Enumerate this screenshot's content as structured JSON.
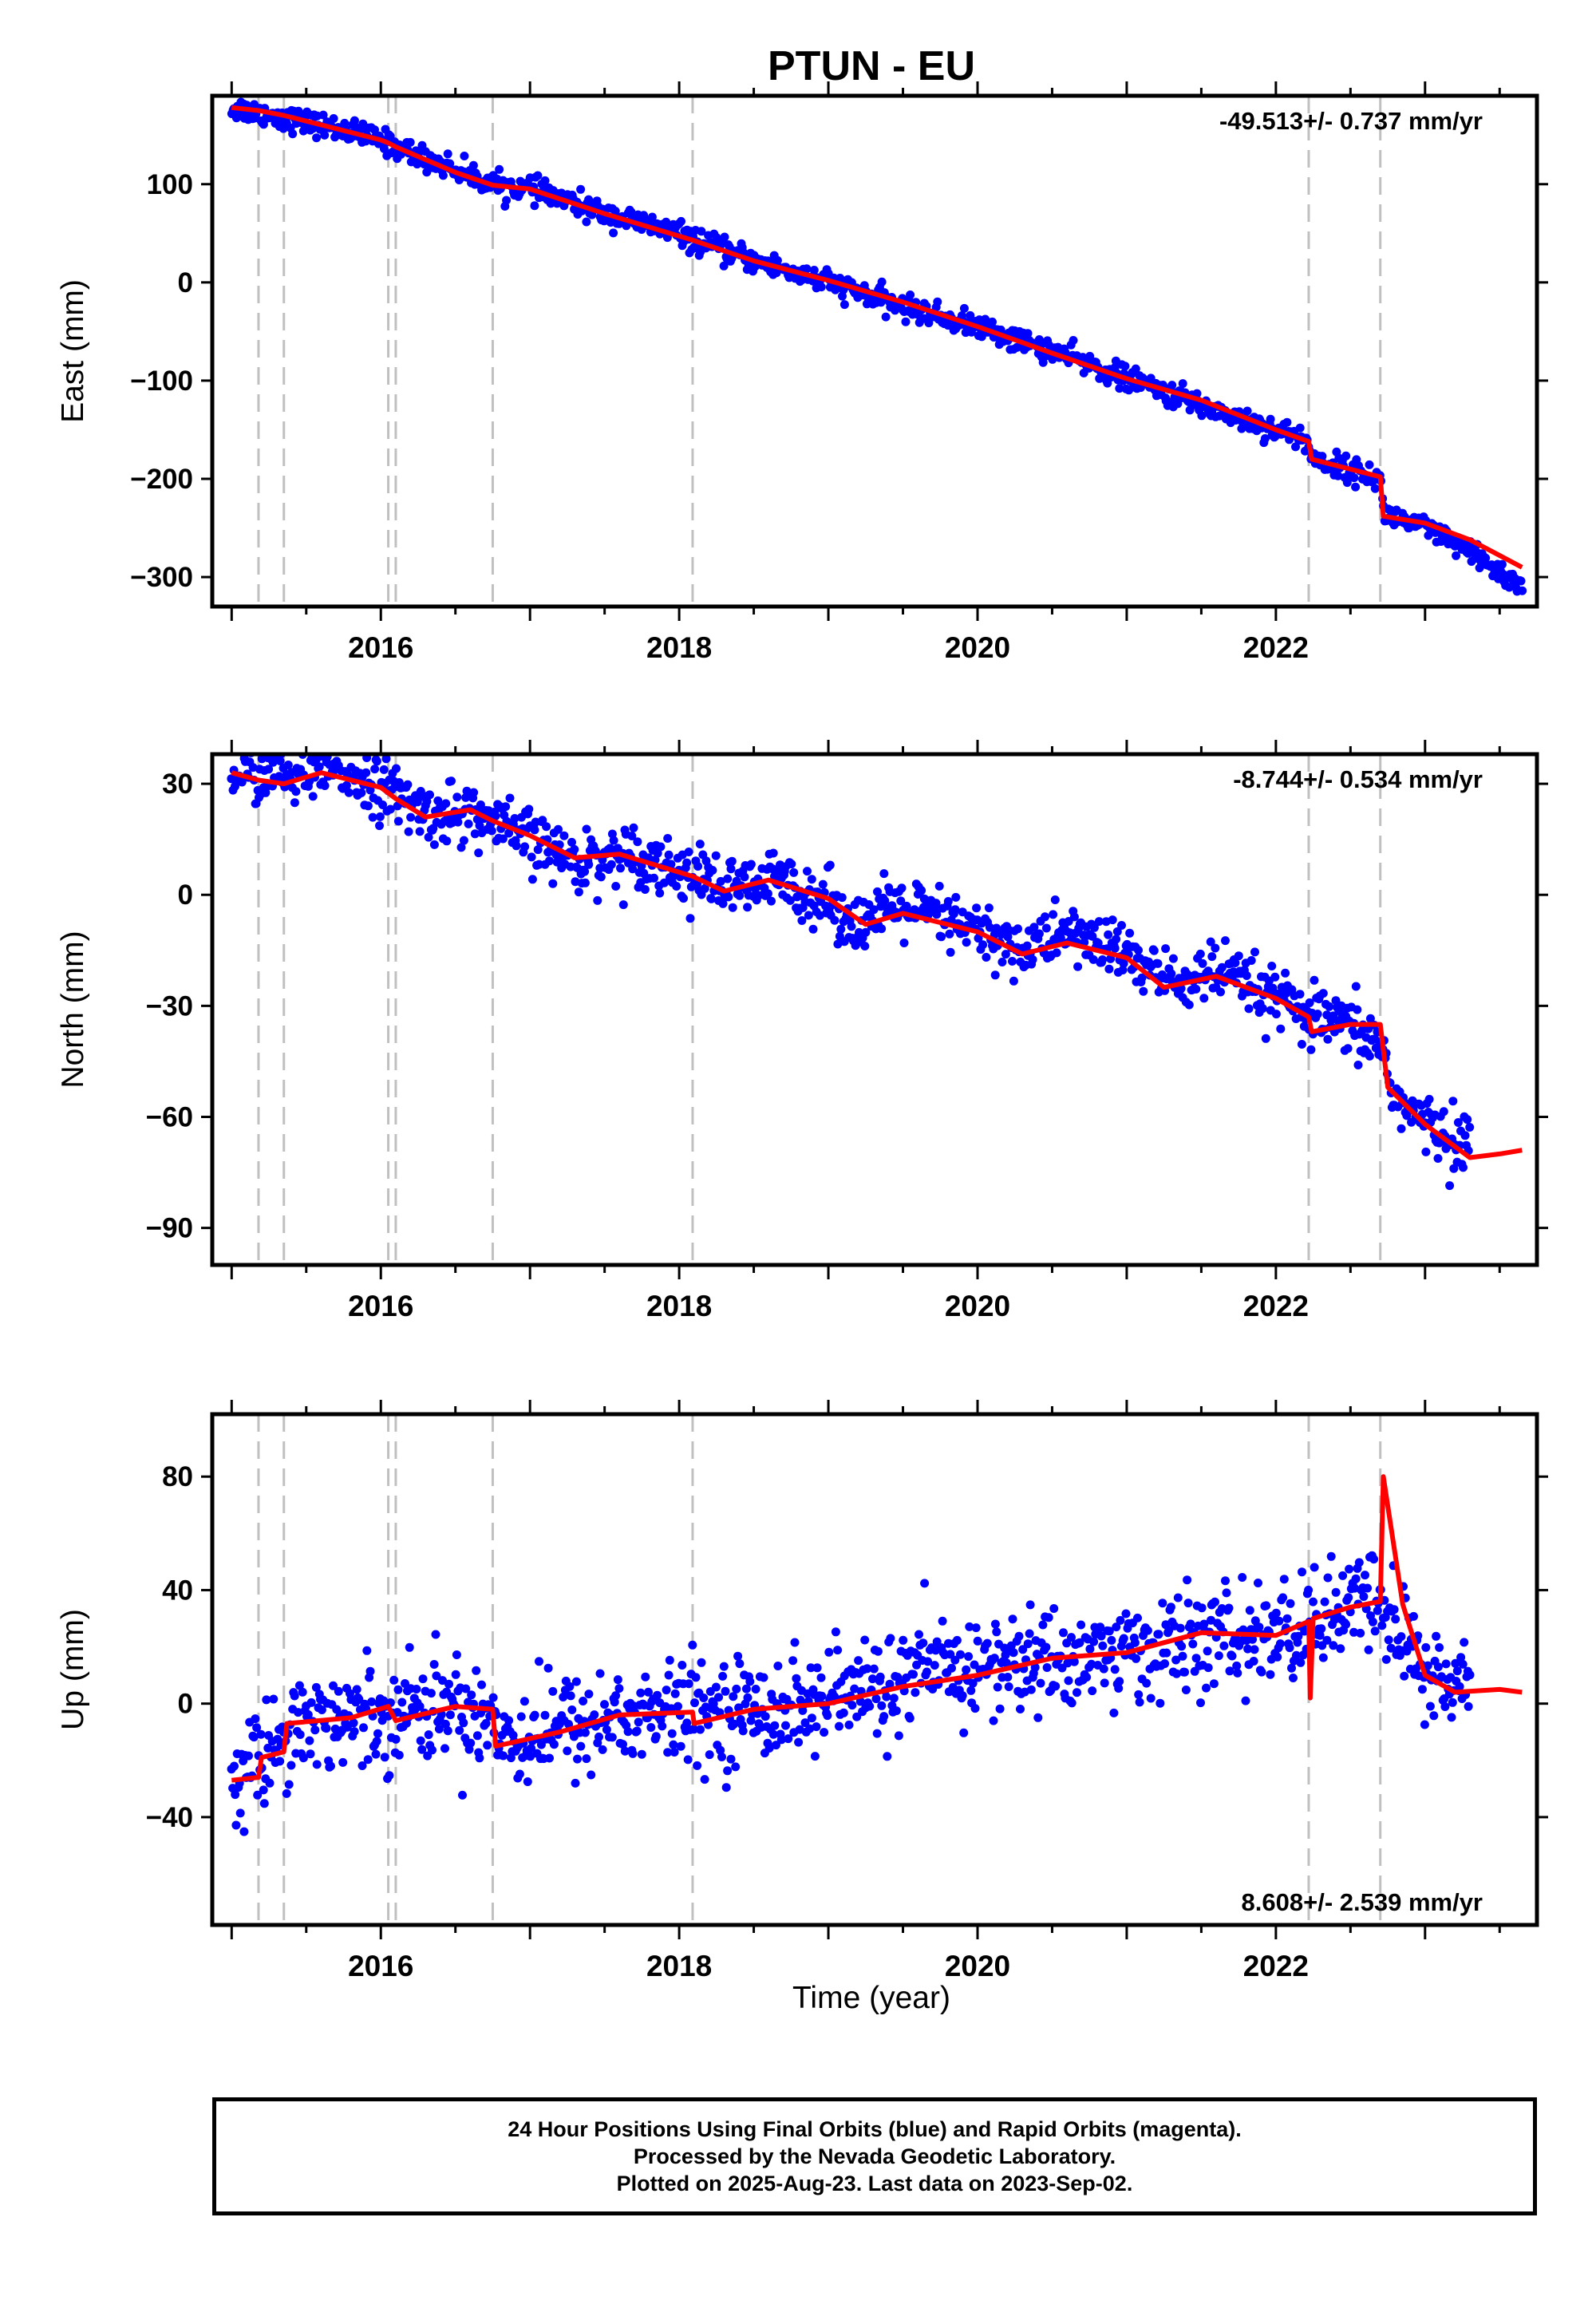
{
  "title": "PTUN - EU",
  "xlabel": "Time (year)",
  "footer": {
    "line1": "24 Hour Positions Using Final Orbits (blue) and Rapid Orbits (magenta).",
    "line2": "Processed by the Nevada Geodetic Laboratory.",
    "line3": "Plotted on 2025-Aug-23. Last data on 2023-Sep-02."
  },
  "colors": {
    "data": "#0000ff",
    "model": "#ff0000",
    "event": "#c0c0c0"
  },
  "chart_data": [
    {
      "type": "scatter",
      "panel": "east",
      "ylabel": "East (mm)",
      "rate": "-49.513+/- 0.737 mm/yr",
      "xlim": [
        2014.87,
        2023.75
      ],
      "ylim": [
        -330,
        190
      ],
      "xticks": [
        2016,
        2018,
        2020,
        2022
      ],
      "yticks": [
        -300,
        -200,
        -100,
        0,
        100
      ],
      "event_lines": [
        2015.18,
        2015.35,
        2016.05,
        2016.1,
        2016.75,
        2018.09,
        2022.22,
        2022.7
      ],
      "series": [
        {
          "points": [
            [
              2015.0,
              178
            ],
            [
              2015.2,
              172
            ],
            [
              2015.5,
              163
            ],
            [
              2015.8,
              153
            ],
            [
              2016.0,
              145
            ],
            [
              2016.1,
              138
            ],
            [
              2016.5,
              115
            ],
            [
              2016.75,
              100
            ],
            [
              2017.0,
              95
            ],
            [
              2017.5,
              70
            ],
            [
              2018.0,
              50
            ],
            [
              2018.1,
              42
            ],
            [
              2018.5,
              22
            ],
            [
              2019.0,
              0
            ],
            [
              2019.5,
              -25
            ],
            [
              2020.0,
              -45
            ],
            [
              2020.5,
              -70
            ],
            [
              2021.0,
              -98
            ],
            [
              2021.5,
              -125
            ],
            [
              2022.0,
              -150
            ],
            [
              2022.2,
              -160
            ],
            [
              2022.25,
              -180
            ],
            [
              2022.7,
              -200
            ],
            [
              2022.72,
              -235
            ],
            [
              2023.0,
              -250
            ],
            [
              2023.3,
              -275
            ],
            [
              2023.55,
              -300
            ],
            [
              2023.65,
              -312
            ]
          ],
          "spread": 6
        }
      ],
      "model": [
        [
          2015.0,
          178
        ],
        [
          2015.18,
          175
        ],
        [
          2015.35,
          170
        ],
        [
          2016.0,
          145
        ],
        [
          2016.05,
          142
        ],
        [
          2016.1,
          138
        ],
        [
          2016.5,
          112
        ],
        [
          2016.75,
          99
        ],
        [
          2017.0,
          95
        ],
        [
          2017.5,
          70
        ],
        [
          2018.09,
          43
        ],
        [
          2018.5,
          22
        ],
        [
          2019.0,
          2
        ],
        [
          2019.5,
          -20
        ],
        [
          2020.0,
          -45
        ],
        [
          2020.5,
          -72
        ],
        [
          2021.0,
          -98
        ],
        [
          2021.5,
          -120
        ],
        [
          2022.0,
          -150
        ],
        [
          2022.22,
          -162
        ],
        [
          2022.24,
          -180
        ],
        [
          2022.7,
          -198
        ],
        [
          2022.72,
          -238
        ],
        [
          2023.0,
          -245
        ],
        [
          2023.3,
          -262
        ],
        [
          2023.65,
          -290
        ]
      ]
    },
    {
      "type": "scatter",
      "panel": "north",
      "ylabel": "North (mm)",
      "rate": "-8.744+/- 0.534 mm/yr",
      "xlim": [
        2014.87,
        2023.75
      ],
      "ylim": [
        -100,
        38
      ],
      "xticks": [
        2016,
        2018,
        2020,
        2022
      ],
      "yticks": [
        -90,
        -60,
        -30,
        0,
        30
      ],
      "event_lines": [
        2015.18,
        2015.35,
        2016.05,
        2016.1,
        2016.75,
        2018.09,
        2022.22,
        2022.7
      ],
      "series": [
        {
          "points": [
            [
              2015.0,
              33
            ],
            [
              2015.5,
              32
            ],
            [
              2015.7,
              34
            ],
            [
              2016.0,
              29
            ],
            [
              2016.3,
              22
            ],
            [
              2016.6,
              22
            ],
            [
              2016.75,
              19
            ],
            [
              2017.0,
              15
            ],
            [
              2017.3,
              9
            ],
            [
              2017.7,
              11
            ],
            [
              2018.1,
              5
            ],
            [
              2018.4,
              1
            ],
            [
              2018.7,
              4
            ],
            [
              2019.0,
              -2
            ],
            [
              2019.2,
              -8
            ],
            [
              2019.5,
              -3
            ],
            [
              2020.0,
              -10
            ],
            [
              2020.3,
              -15
            ],
            [
              2020.6,
              -10
            ],
            [
              2021.0,
              -16
            ],
            [
              2021.3,
              -24
            ],
            [
              2021.6,
              -21
            ],
            [
              2022.0,
              -28
            ],
            [
              2022.2,
              -33
            ],
            [
              2022.4,
              -35
            ],
            [
              2022.7,
              -40
            ],
            [
              2022.8,
              -55
            ],
            [
              2023.0,
              -62
            ],
            [
              2023.3,
              -68
            ]
          ],
          "spread": 4
        }
      ],
      "model": [
        [
          2015.0,
          33
        ],
        [
          2015.18,
          31
        ],
        [
          2015.35,
          30
        ],
        [
          2015.6,
          33
        ],
        [
          2016.0,
          29
        ],
        [
          2016.1,
          26
        ],
        [
          2016.3,
          21
        ],
        [
          2016.6,
          23
        ],
        [
          2016.75,
          20
        ],
        [
          2017.0,
          16
        ],
        [
          2017.3,
          10
        ],
        [
          2017.6,
          11
        ],
        [
          2018.09,
          5
        ],
        [
          2018.3,
          1
        ],
        [
          2018.6,
          4
        ],
        [
          2019.0,
          -1
        ],
        [
          2019.25,
          -8
        ],
        [
          2019.5,
          -5
        ],
        [
          2020.0,
          -10
        ],
        [
          2020.3,
          -16
        ],
        [
          2020.6,
          -13
        ],
        [
          2021.0,
          -17
        ],
        [
          2021.25,
          -25
        ],
        [
          2021.6,
          -22
        ],
        [
          2022.0,
          -28
        ],
        [
          2022.22,
          -33
        ],
        [
          2022.24,
          -37
        ],
        [
          2022.5,
          -35
        ],
        [
          2022.7,
          -35
        ],
        [
          2022.75,
          -52
        ],
        [
          2023.0,
          -62
        ],
        [
          2023.3,
          -71
        ],
        [
          2023.5,
          -70
        ],
        [
          2023.65,
          -69
        ]
      ]
    },
    {
      "type": "scatter",
      "panel": "up",
      "ylabel": "Up (mm)",
      "rate": "8.608+/- 2.539 mm/yr",
      "xlim": [
        2014.87,
        2023.75
      ],
      "ylim": [
        -78,
        102
      ],
      "xticks": [
        2016,
        2018,
        2020,
        2022
      ],
      "yticks": [
        -40,
        0,
        40,
        80
      ],
      "event_lines": [
        2015.18,
        2015.35,
        2016.05,
        2016.1,
        2016.75,
        2018.09,
        2022.22,
        2022.7
      ],
      "series": [
        {
          "points": [
            [
              2015.0,
              -26
            ],
            [
              2015.2,
              -20
            ],
            [
              2015.4,
              -6
            ],
            [
              2015.8,
              -5
            ],
            [
              2016.1,
              -2
            ],
            [
              2016.4,
              -1
            ],
            [
              2016.75,
              -3
            ],
            [
              2016.8,
              -13
            ],
            [
              2017.2,
              -8
            ],
            [
              2017.6,
              -5
            ],
            [
              2018.1,
              -3
            ],
            [
              2018.5,
              -2
            ],
            [
              2019.0,
              1
            ],
            [
              2019.3,
              5
            ],
            [
              2019.6,
              10
            ],
            [
              2020.0,
              13
            ],
            [
              2020.5,
              15
            ],
            [
              2021.0,
              18
            ],
            [
              2021.5,
              22
            ],
            [
              2022.0,
              24
            ],
            [
              2022.2,
              27
            ],
            [
              2022.5,
              34
            ],
            [
              2022.7,
              36
            ],
            [
              2023.0,
              10
            ],
            [
              2023.3,
              5
            ]
          ],
          "spread": 9
        }
      ],
      "model": [
        [
          2015.0,
          -27
        ],
        [
          2015.18,
          -26
        ],
        [
          2015.2,
          -19
        ],
        [
          2015.35,
          -17
        ],
        [
          2015.37,
          -7
        ],
        [
          2015.8,
          -5
        ],
        [
          2016.05,
          -1
        ],
        [
          2016.1,
          -6
        ],
        [
          2016.5,
          -1
        ],
        [
          2016.75,
          -2
        ],
        [
          2016.77,
          -15
        ],
        [
          2017.2,
          -10
        ],
        [
          2017.6,
          -4
        ],
        [
          2018.09,
          -3
        ],
        [
          2018.1,
          -7
        ],
        [
          2018.5,
          -2
        ],
        [
          2019.0,
          0
        ],
        [
          2019.5,
          6
        ],
        [
          2020.0,
          10
        ],
        [
          2020.5,
          16
        ],
        [
          2021.0,
          18
        ],
        [
          2021.5,
          25
        ],
        [
          2022.0,
          24
        ],
        [
          2022.22,
          29
        ],
        [
          2022.23,
          2
        ],
        [
          2022.25,
          30
        ],
        [
          2022.5,
          34
        ],
        [
          2022.7,
          36
        ],
        [
          2022.72,
          80
        ],
        [
          2022.85,
          35
        ],
        [
          2023.0,
          10
        ],
        [
          2023.2,
          4
        ],
        [
          2023.5,
          5
        ],
        [
          2023.65,
          4
        ]
      ]
    }
  ]
}
